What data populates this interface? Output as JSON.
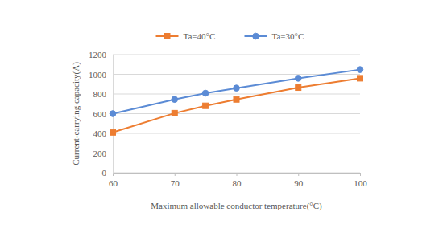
{
  "chart_data": {
    "type": "line",
    "x_label": "Maximum allowable conductor temperature(°C)",
    "y_label": "Current-carrying capacity(A)",
    "x": [
      60,
      70,
      75,
      80,
      90,
      100
    ],
    "series": [
      {
        "name": "Ta=40°C",
        "color": "#ed7d31",
        "marker": "square",
        "values": [
          410,
          605,
          680,
          745,
          865,
          960
        ]
      },
      {
        "name": "Ta=30°C",
        "color": "#5b8bd5",
        "marker": "circle",
        "values": [
          600,
          745,
          808,
          860,
          960,
          1048
        ]
      }
    ],
    "xlim": [
      60,
      100
    ],
    "xticks": [
      60,
      70,
      80,
      90,
      100
    ],
    "ylim": [
      0,
      1200
    ],
    "yticks": [
      0,
      200,
      400,
      600,
      800,
      1000,
      1200
    ],
    "grid": true,
    "legend": "top"
  }
}
